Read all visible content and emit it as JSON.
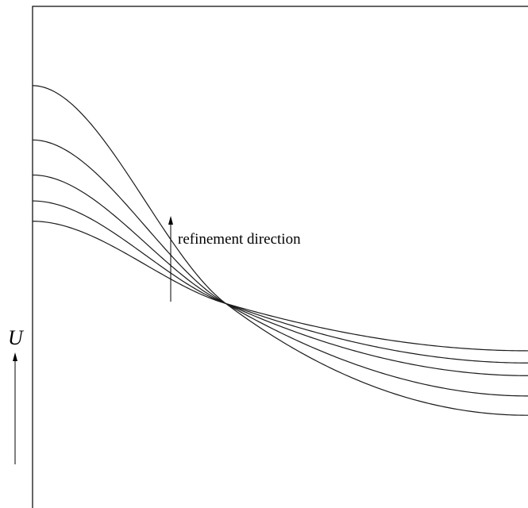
{
  "chart_data": {
    "type": "line",
    "title": "",
    "xlabel": "",
    "ylabel": "U",
    "grid": false,
    "legend": "none",
    "annotation": "refinement direction",
    "series": [
      {
        "left": 0.844,
        "right": 0.195
      },
      {
        "left": 0.737,
        "right": 0.233
      },
      {
        "left": 0.668,
        "right": 0.273
      },
      {
        "left": 0.617,
        "right": 0.298
      },
      {
        "left": 0.577,
        "right": 0.322
      }
    ],
    "crossing": {
      "x": 0.39,
      "y": 0.415
    }
  }
}
